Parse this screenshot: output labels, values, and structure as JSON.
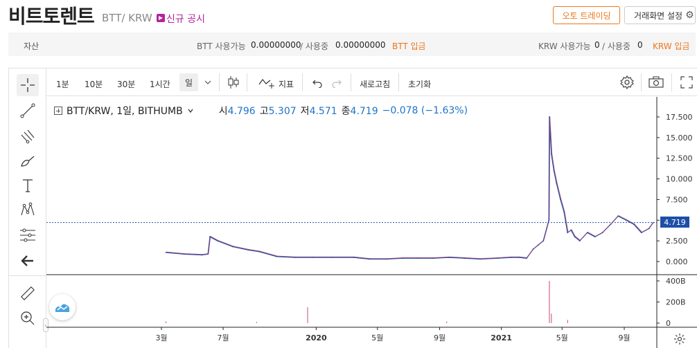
{
  "header": {
    "coin_name": "비트토렌트",
    "pair": "BTT/ KRW",
    "notice": "신규 공시",
    "auto_trading": "오토 트레이딩",
    "screen_settings": "거래화면 설정"
  },
  "assets": {
    "label": "자산",
    "btt_available_label": "BTT 사용가능",
    "btt_available": "0.00000000",
    "btt_in_use_label": "/ 사용중",
    "btt_in_use": "0.00000000",
    "btt_deposit": "BTT 입금",
    "krw_available_label": "KRW 사용가능",
    "krw_available": "0",
    "krw_in_use_label": "/ 사용중",
    "krw_in_use": "0",
    "krw_deposit": "KRW 입금"
  },
  "toolbar": {
    "intervals": [
      "1분",
      "10분",
      "30분",
      "1시간"
    ],
    "selected_interval": "일",
    "indicators": "지표",
    "refresh": "새로고침",
    "reset": "초기화"
  },
  "legend": {
    "symbol": "BTT/KRW, 1일, BITHUMB",
    "open_label": "시",
    "open": "4.796",
    "high_label": "고",
    "high": "5.307",
    "low_label": "저",
    "low": "4.571",
    "close_label": "종",
    "close": "4.719",
    "change": "−0.078 (−1.63%)"
  },
  "price_axis": [
    "17.500",
    "15.000",
    "12.500",
    "10.000",
    "7.500",
    "5.000",
    "2.500",
    "0.000"
  ],
  "current_price": "4.719",
  "volume_axis": [
    "400B",
    "200B",
    "0"
  ],
  "time_axis": [
    "3월",
    "7월",
    "2020",
    "5월",
    "9월",
    "2021",
    "5월",
    "9월"
  ],
  "colors": {
    "up": "#c84a6a",
    "down": "#1e4fa8",
    "accent": "#e9781f",
    "notice": "#b3249e"
  },
  "chart_data": {
    "type": "line",
    "title": "BTT/KRW, 1일, BITHUMB",
    "x_ticks": [
      "3월",
      "7월",
      "2020",
      "5월",
      "9월",
      "2021",
      "5월",
      "9월"
    ],
    "ylim": [
      0,
      18
    ],
    "series": [
      {
        "name": "BTT/KRW",
        "x": [
          "2019-03-10",
          "2019-04-15",
          "2019-05-20",
          "2019-06-01",
          "2019-06-05",
          "2019-06-20",
          "2019-07-20",
          "2019-08-20",
          "2019-09-10",
          "2019-10-15",
          "2019-11-20",
          "2019-12-25",
          "2020-02-01",
          "2020-03-15",
          "2020-04-15",
          "2020-05-20",
          "2020-06-20",
          "2020-07-20",
          "2020-08-20",
          "2020-09-20",
          "2020-10-20",
          "2020-11-20",
          "2020-12-25",
          "2021-01-20",
          "2021-02-05",
          "2021-02-20",
          "2021-03-05",
          "2021-03-15",
          "2021-03-25",
          "2021-04-05",
          "2021-04-06",
          "2021-04-10",
          "2021-04-15",
          "2021-04-20",
          "2021-04-28",
          "2021-05-05",
          "2021-05-12",
          "2021-05-19",
          "2021-05-26",
          "2021-06-05",
          "2021-06-20",
          "2021-07-05",
          "2021-07-20",
          "2021-08-05",
          "2021-08-20",
          "2021-09-05",
          "2021-09-20",
          "2021-10-05",
          "2021-10-20",
          "2021-10-28"
        ],
        "values": [
          1.1,
          0.9,
          0.8,
          0.9,
          3.0,
          2.5,
          1.8,
          1.4,
          1.2,
          0.6,
          0.5,
          0.5,
          0.5,
          0.5,
          0.3,
          0.3,
          0.4,
          0.4,
          0.4,
          0.5,
          0.4,
          0.3,
          0.4,
          0.5,
          0.5,
          0.4,
          1.5,
          2.0,
          2.5,
          5.0,
          17.5,
          13.0,
          11.0,
          9.5,
          7.5,
          6.0,
          3.5,
          3.8,
          3.0,
          2.5,
          3.5,
          3.0,
          3.5,
          4.5,
          5.5,
          5.0,
          4.5,
          3.5,
          4.0,
          4.7
        ]
      }
    ],
    "volume": {
      "ylim": [
        0,
        400
      ],
      "unit": "B",
      "x": [
        "2019-03-10",
        "2019-09-05",
        "2019-12-15",
        "2020-09-15",
        "2021-04-06",
        "2021-04-10",
        "2021-05-12"
      ],
      "values": [
        15,
        12,
        150,
        15,
        400,
        90,
        30
      ]
    }
  }
}
